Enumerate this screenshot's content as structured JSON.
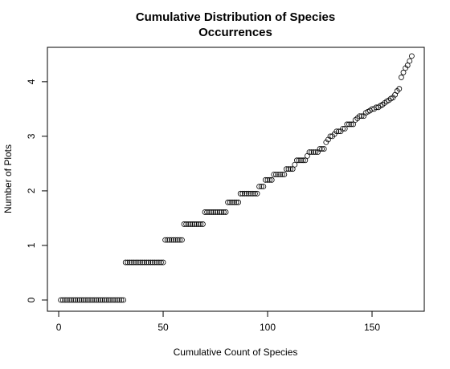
{
  "chart_data": {
    "type": "scatter",
    "title": [
      "Cumulative Distribution of Species",
      "Occurrences"
    ],
    "xlabel": "Cumulative Count of Species",
    "ylabel": "Number of Plots",
    "x": [
      1,
      2,
      3,
      4,
      5,
      6,
      7,
      8,
      9,
      10,
      11,
      12,
      13,
      14,
      15,
      16,
      17,
      18,
      19,
      20,
      21,
      22,
      23,
      24,
      25,
      26,
      27,
      28,
      29,
      30,
      31,
      32,
      33,
      34,
      35,
      36,
      37,
      38,
      39,
      40,
      41,
      42,
      43,
      44,
      45,
      46,
      47,
      48,
      49,
      50,
      51,
      52,
      53,
      54,
      55,
      56,
      57,
      58,
      59,
      60,
      61,
      62,
      63,
      64,
      65,
      66,
      67,
      68,
      69,
      70,
      71,
      72,
      73,
      74,
      75,
      76,
      77,
      78,
      79,
      80,
      81,
      82,
      83,
      84,
      85,
      86,
      87,
      88,
      89,
      90,
      91,
      92,
      93,
      94,
      95,
      96,
      97,
      98,
      99,
      100,
      101,
      102,
      103,
      104,
      105,
      106,
      107,
      108,
      109,
      110,
      111,
      112,
      113,
      114,
      115,
      116,
      117,
      118,
      119,
      120,
      121,
      122,
      123,
      124,
      125,
      126,
      127,
      128,
      129,
      130,
      131,
      132,
      133,
      134,
      135,
      136,
      137,
      138,
      139,
      140,
      141,
      142,
      143,
      144,
      145,
      146,
      147,
      148,
      149,
      150,
      151,
      152,
      153,
      154,
      155,
      156,
      157,
      158,
      159,
      160,
      161,
      162,
      163,
      164,
      165,
      166,
      167,
      168,
      169
    ],
    "values": [
      0,
      0,
      0,
      0,
      0,
      0,
      0,
      0,
      0,
      0,
      0,
      0,
      0,
      0,
      0,
      0,
      0,
      0,
      0,
      0,
      0,
      0,
      0,
      0,
      0,
      0,
      0,
      0,
      0,
      0,
      0,
      0.69,
      0.69,
      0.69,
      0.69,
      0.69,
      0.69,
      0.69,
      0.69,
      0.69,
      0.69,
      0.69,
      0.69,
      0.69,
      0.69,
      0.69,
      0.69,
      0.69,
      0.69,
      0.69,
      1.1,
      1.1,
      1.1,
      1.1,
      1.1,
      1.1,
      1.1,
      1.1,
      1.1,
      1.39,
      1.39,
      1.39,
      1.39,
      1.39,
      1.39,
      1.39,
      1.39,
      1.39,
      1.39,
      1.61,
      1.61,
      1.61,
      1.61,
      1.61,
      1.61,
      1.61,
      1.61,
      1.61,
      1.61,
      1.61,
      1.79,
      1.79,
      1.79,
      1.79,
      1.79,
      1.79,
      1.95,
      1.95,
      1.95,
      1.95,
      1.95,
      1.95,
      1.95,
      1.95,
      1.95,
      2.08,
      2.08,
      2.08,
      2.2,
      2.2,
      2.2,
      2.2,
      2.3,
      2.3,
      2.3,
      2.3,
      2.3,
      2.3,
      2.4,
      2.4,
      2.4,
      2.4,
      2.48,
      2.56,
      2.56,
      2.56,
      2.56,
      2.56,
      2.64,
      2.71,
      2.71,
      2.71,
      2.71,
      2.71,
      2.77,
      2.77,
      2.77,
      2.89,
      2.94,
      3.0,
      3.0,
      3.04,
      3.09,
      3.09,
      3.09,
      3.14,
      3.14,
      3.22,
      3.22,
      3.22,
      3.22,
      3.3,
      3.33,
      3.37,
      3.37,
      3.37,
      3.43,
      3.45,
      3.47,
      3.5,
      3.5,
      3.53,
      3.53,
      3.56,
      3.58,
      3.61,
      3.64,
      3.66,
      3.69,
      3.71,
      3.76,
      3.83,
      3.87,
      4.08,
      4.17,
      4.25,
      4.3,
      4.38,
      4.47
    ],
    "color": "#000000",
    "xlim": [
      -5.4,
      175
    ],
    "ylim": [
      -0.206,
      4.63
    ],
    "xticks": [
      0,
      50,
      100,
      150
    ],
    "yticks": [
      0,
      1,
      2,
      3,
      4
    ]
  }
}
